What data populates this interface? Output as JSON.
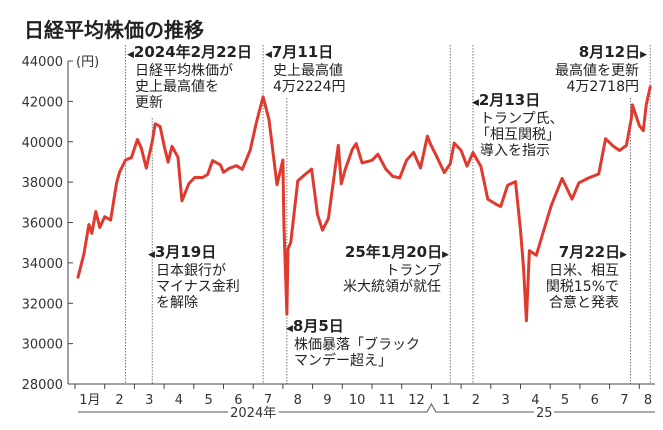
{
  "title": "日経平均株価の推移",
  "chart_data": {
    "type": "line",
    "title": "日経平均株価の推移",
    "ylabel": "(円)",
    "ylim": [
      28000,
      44000
    ],
    "yticks": [
      28000,
      30000,
      32000,
      34000,
      36000,
      38000,
      40000,
      42000,
      44000
    ],
    "xticks": [
      "1月",
      "2",
      "3",
      "4",
      "5",
      "6",
      "7",
      "8",
      "9",
      "10",
      "11",
      "12",
      "1",
      "2",
      "3",
      "4",
      "5",
      "6",
      "7",
      "8"
    ],
    "year_labels": [
      "2024年",
      "25"
    ],
    "line_color": "#e03a2f",
    "series": [
      {
        "name": "日経平均株価",
        "points": [
          [
            "2024-01-04",
            33288
          ],
          [
            "2024-01-10",
            34441
          ],
          [
            "2024-01-15",
            35901
          ],
          [
            "2024-01-18",
            35466
          ],
          [
            "2024-01-22",
            36546
          ],
          [
            "2024-01-26",
            35751
          ],
          [
            "2024-01-31",
            36286
          ],
          [
            "2024-02-07",
            36119
          ],
          [
            "2024-02-13",
            37963
          ],
          [
            "2024-02-16",
            38487
          ],
          [
            "2024-02-22",
            39098
          ],
          [
            "2024-02-28",
            39208
          ],
          [
            "2024-03-04",
            40109
          ],
          [
            "2024-03-08",
            39688
          ],
          [
            "2024-03-13",
            38695
          ],
          [
            "2024-03-19",
            40003
          ],
          [
            "2024-03-22",
            40888
          ],
          [
            "2024-03-27",
            40762
          ],
          [
            "2024-04-01",
            39803
          ],
          [
            "2024-04-05",
            38992
          ],
          [
            "2024-04-09",
            39773
          ],
          [
            "2024-04-15",
            39232
          ],
          [
            "2024-04-19",
            37068
          ],
          [
            "2024-04-26",
            37934
          ],
          [
            "2024-05-02",
            38236
          ],
          [
            "2024-05-10",
            38229
          ],
          [
            "2024-05-15",
            38385
          ],
          [
            "2024-05-20",
            39069
          ],
          [
            "2024-05-28",
            38855
          ],
          [
            "2024-05-31",
            38487
          ],
          [
            "2024-06-07",
            38683
          ],
          [
            "2024-06-14",
            38814
          ],
          [
            "2024-06-20",
            38633
          ],
          [
            "2024-06-28",
            39583
          ],
          [
            "2024-07-04",
            40913
          ],
          [
            "2024-07-11",
            42224
          ],
          [
            "2024-07-17",
            41097
          ],
          [
            "2024-07-25",
            37869
          ],
          [
            "2024-07-31",
            39101
          ],
          [
            "2024-08-02",
            35909
          ],
          [
            "2024-08-05",
            31458
          ],
          [
            "2024-08-06",
            34675
          ],
          [
            "2024-08-09",
            35025
          ],
          [
            "2024-08-16",
            38062
          ],
          [
            "2024-08-23",
            38364
          ],
          [
            "2024-08-30",
            38647
          ],
          [
            "2024-09-06",
            36391
          ],
          [
            "2024-09-11",
            35619
          ],
          [
            "2024-09-17",
            36203
          ],
          [
            "2024-09-27",
            39829
          ],
          [
            "2024-09-30",
            37919
          ],
          [
            "2024-10-04",
            38635
          ],
          [
            "2024-10-11",
            39605
          ],
          [
            "2024-10-15",
            39910
          ],
          [
            "2024-10-21",
            38954
          ],
          [
            "2024-10-31",
            39081
          ],
          [
            "2024-11-07",
            39381
          ],
          [
            "2024-11-15",
            38642
          ],
          [
            "2024-11-22",
            38283
          ],
          [
            "2024-11-29",
            38208
          ],
          [
            "2024-12-06",
            39091
          ],
          [
            "2024-12-13",
            39470
          ],
          [
            "2024-12-20",
            38701
          ],
          [
            "2024-12-27",
            40281
          ],
          [
            "2024-12-30",
            39894
          ],
          [
            "2025-01-06",
            39307
          ],
          [
            "2025-01-14",
            38474
          ],
          [
            "2025-01-20",
            38902
          ],
          [
            "2025-01-24",
            39931
          ],
          [
            "2025-01-31",
            39572
          ],
          [
            "2025-02-07",
            38787
          ],
          [
            "2025-02-13",
            39461
          ],
          [
            "2025-02-21",
            38776
          ],
          [
            "2025-02-28",
            37155
          ],
          [
            "2025-03-07",
            36887
          ],
          [
            "2025-03-11",
            36793
          ],
          [
            "2025-03-18",
            37845
          ],
          [
            "2025-03-26",
            38027
          ],
          [
            "2025-03-31",
            35617
          ],
          [
            "2025-04-04",
            33780
          ],
          [
            "2025-04-07",
            31136
          ],
          [
            "2025-04-10",
            34609
          ],
          [
            "2025-04-17",
            34377
          ],
          [
            "2025-04-25",
            35705
          ],
          [
            "2025-05-02",
            36830
          ],
          [
            "2025-05-13",
            38183
          ],
          [
            "2025-05-23",
            37160
          ],
          [
            "2025-05-30",
            37965
          ],
          [
            "2025-06-10",
            38211
          ],
          [
            "2025-06-20",
            38403
          ],
          [
            "2025-06-27",
            40150
          ],
          [
            "2025-07-04",
            39810
          ],
          [
            "2025-07-11",
            39569
          ],
          [
            "2025-07-18",
            39819
          ],
          [
            "2025-07-23",
            41171
          ],
          [
            "2025-07-24",
            41826
          ],
          [
            "2025-07-31",
            40807
          ],
          [
            "2025-08-05",
            40549
          ],
          [
            "2025-08-08",
            41820
          ],
          [
            "2025-08-12",
            42718
          ]
        ]
      }
    ],
    "annotations": [
      {
        "date": "2024-02-22",
        "label": "2024年2月22日",
        "lines": [
          "日経平均株価が",
          "史上最高値を",
          "更新"
        ]
      },
      {
        "date": "2024-03-19",
        "label": "3月19日",
        "lines": [
          "日本銀行が",
          "マイナス金利",
          "を解除"
        ]
      },
      {
        "date": "2024-07-11",
        "label": "7月11日",
        "lines": [
          "史上最高値",
          "4万2224円"
        ]
      },
      {
        "date": "2024-08-05",
        "label": "8月5日",
        "lines": [
          "株価暴落「ブラック",
          "マンデー超え」"
        ]
      },
      {
        "date": "2025-01-20",
        "label": "25年1月20日",
        "lines": [
          "トランプ",
          "米大統領が就任"
        ]
      },
      {
        "date": "2025-02-13",
        "label": "2月13日",
        "lines": [
          "トランプ氏、",
          "「相互関税」",
          "導入を指示"
        ]
      },
      {
        "date": "2025-07-22",
        "label": "7月22日",
        "lines": [
          "日米、相互",
          "関税15%で",
          "合意と発表"
        ]
      },
      {
        "date": "2025-08-12",
        "label": "8月12日",
        "lines": [
          "最高値を更新",
          "4万2718円"
        ]
      }
    ]
  }
}
